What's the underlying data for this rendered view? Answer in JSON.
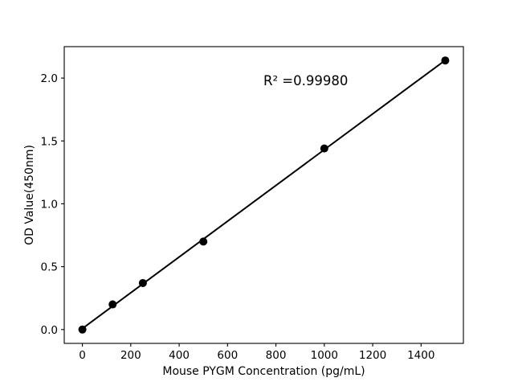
{
  "chart_data": {
    "type": "scatter",
    "title": "",
    "xlabel": "Mouse PYGM Concentration (pg/mL)",
    "ylabel": "OD Value(450nm)",
    "annotation": "R² =0.99980",
    "x": [
      0,
      125,
      250,
      500,
      1000,
      1500
    ],
    "y": [
      0.0,
      0.2,
      0.37,
      0.7,
      1.44,
      2.14
    ],
    "fit_line": {
      "type": "linear",
      "r_squared_label": "R² =0.99980"
    },
    "xlim": [
      -75,
      1575
    ],
    "ylim": [
      -0.11,
      2.25
    ],
    "xticks": {
      "values": [
        0,
        200,
        400,
        600,
        800,
        1000,
        1200,
        1400
      ],
      "labels": [
        "0",
        "200",
        "400",
        "600",
        "800",
        "1000",
        "1200",
        "1400"
      ]
    },
    "yticks": {
      "values": [
        0,
        0.5,
        1.0,
        1.5,
        2.0
      ],
      "labels": [
        "0.0",
        "0.5",
        "1.0",
        "1.5",
        "2.0"
      ]
    },
    "grid": false,
    "legend_position": "none",
    "colors": {
      "marker": "#000000",
      "line": "#000000",
      "axis": "#000000",
      "text": "#000000",
      "background": "#ffffff"
    }
  }
}
